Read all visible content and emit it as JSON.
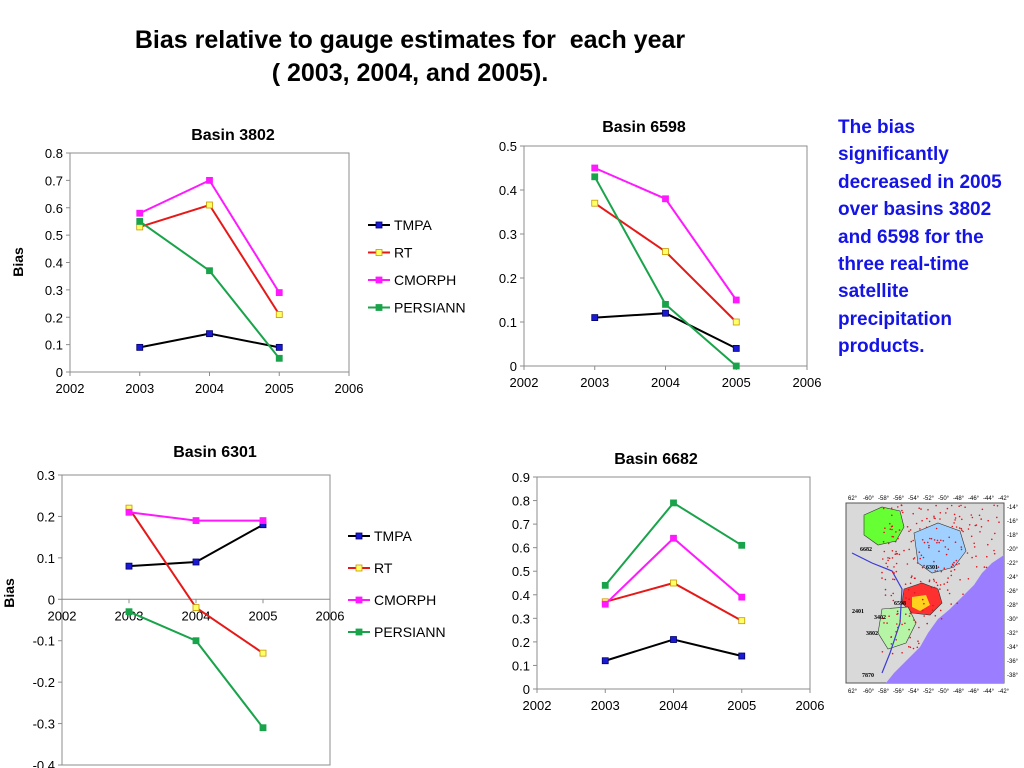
{
  "title": {
    "line1": "Bias relative to gauge estimates for  each year",
    "line2": "( 2003, 2004, and 2005)."
  },
  "note": "The bias significantly decreased in 2005 over basins 3802 and 6598 for the three real-time satellite precipitation products.",
  "series_colors": {
    "TMPA": "#000000",
    "RT": "#e61919",
    "CMORPH": "#ff19ff",
    "PERSIANN": "#19a34a"
  },
  "marker_colors": {
    "TMPA": "#1a1ad6",
    "RT": "#ffff66",
    "CMORPH": "#ff19ff",
    "PERSIANN": "#19a34a"
  },
  "chart_data": [
    {
      "id": "basin-3802",
      "type": "line",
      "title": "Basin 3802",
      "ylabel": "Bias",
      "xlabel": "",
      "x": [
        2003,
        2004,
        2005
      ],
      "xlim": [
        2002,
        2006
      ],
      "ylim": [
        0,
        0.8
      ],
      "xticks": [
        "2002",
        "2003",
        "2004",
        "2005",
        "2006"
      ],
      "yticks": [
        "0",
        "0.1",
        "0.2",
        "0.3",
        "0.4",
        "0.5",
        "0.6",
        "0.7",
        "0.8"
      ],
      "grid": false,
      "legend": "right",
      "series": [
        {
          "name": "TMPA",
          "values": [
            0.09,
            0.14,
            0.09
          ]
        },
        {
          "name": "RT",
          "values": [
            0.53,
            0.61,
            0.21
          ]
        },
        {
          "name": "CMORPH",
          "values": [
            0.58,
            0.7,
            0.29
          ]
        },
        {
          "name": "PERSIANN",
          "values": [
            0.55,
            0.37,
            0.05
          ]
        }
      ]
    },
    {
      "id": "basin-6598",
      "type": "line",
      "title": "Basin 6598",
      "ylabel": "",
      "xlabel": "",
      "x": [
        2003,
        2004,
        2005
      ],
      "xlim": [
        2002,
        2006
      ],
      "ylim": [
        0,
        0.5
      ],
      "xticks": [
        "2002",
        "2003",
        "2004",
        "2005",
        "2006"
      ],
      "yticks": [
        "0",
        "0.1",
        "0.2",
        "0.3",
        "0.4",
        "0.5"
      ],
      "grid": false,
      "legend": "none",
      "series": [
        {
          "name": "TMPA",
          "values": [
            0.11,
            0.12,
            0.04
          ]
        },
        {
          "name": "RT",
          "values": [
            0.37,
            0.26,
            0.1
          ]
        },
        {
          "name": "CMORPH",
          "values": [
            0.45,
            0.38,
            0.15
          ]
        },
        {
          "name": "PERSIANN",
          "values": [
            0.43,
            0.14,
            0.0
          ]
        }
      ]
    },
    {
      "id": "basin-6301",
      "type": "line",
      "title": "Basin 6301",
      "ylabel": "Bias",
      "xlabel": "",
      "x": [
        2003,
        2004,
        2005
      ],
      "xlim": [
        2002,
        2006
      ],
      "ylim": [
        -0.4,
        0.3
      ],
      "xticks": [
        "2002",
        "2003",
        "2004",
        "2005",
        "2006"
      ],
      "yticks": [
        "-0.4",
        "-0.3",
        "-0.2",
        "-0.1",
        "0",
        "0.1",
        "0.2",
        "0.3"
      ],
      "grid": false,
      "legend": "right",
      "series": [
        {
          "name": "TMPA",
          "values": [
            0.08,
            0.09,
            0.18
          ]
        },
        {
          "name": "RT",
          "values": [
            0.22,
            -0.02,
            -0.13
          ]
        },
        {
          "name": "CMORPH",
          "values": [
            0.21,
            0.19,
            0.19
          ]
        },
        {
          "name": "PERSIANN",
          "values": [
            -0.03,
            -0.1,
            -0.31
          ]
        }
      ]
    },
    {
      "id": "basin-6682",
      "type": "line",
      "title": "Basin 6682",
      "ylabel": "",
      "xlabel": "",
      "x": [
        2003,
        2004,
        2005
      ],
      "xlim": [
        2002,
        2006
      ],
      "ylim": [
        0,
        0.9
      ],
      "xticks": [
        "2002",
        "2003",
        "2004",
        "2005",
        "2006"
      ],
      "yticks": [
        "0",
        "0.1",
        "0.2",
        "0.3",
        "0.4",
        "0.5",
        "0.6",
        "0.7",
        "0.8",
        "0.9"
      ],
      "grid": false,
      "legend": "none",
      "series": [
        {
          "name": "TMPA",
          "values": [
            0.12,
            0.21,
            0.14
          ]
        },
        {
          "name": "RT",
          "values": [
            0.37,
            0.45,
            0.29
          ]
        },
        {
          "name": "CMORPH",
          "values": [
            0.36,
            0.64,
            0.39
          ]
        },
        {
          "name": "PERSIANN",
          "values": [
            0.44,
            0.79,
            0.61
          ]
        }
      ]
    }
  ],
  "map": {
    "top_labels": [
      "62°",
      "-60°",
      "-58°",
      "-56°",
      "-54°",
      "-52°",
      "-50°",
      "-48°",
      "-46°",
      "-44°",
      "-42°"
    ],
    "bottom_labels": [
      "62°",
      "-60°",
      "-58°",
      "-56°",
      "-54°",
      "-52°",
      "-50°",
      "-48°",
      "-46°",
      "-44°",
      "-42°"
    ],
    "right_labels": [
      "-14°",
      "-16°",
      "-18°",
      "-20°",
      "-22°",
      "-24°",
      "-26°",
      "-28°",
      "-30°",
      "-32°",
      "-34°",
      "-36°",
      "-38°"
    ],
    "basin_labels": [
      "6682",
      "6301",
      "2401",
      "6598",
      "3402",
      "3802",
      "7870"
    ],
    "ocean_color": "#9b7dff",
    "land_color": "#d9d9d9"
  }
}
